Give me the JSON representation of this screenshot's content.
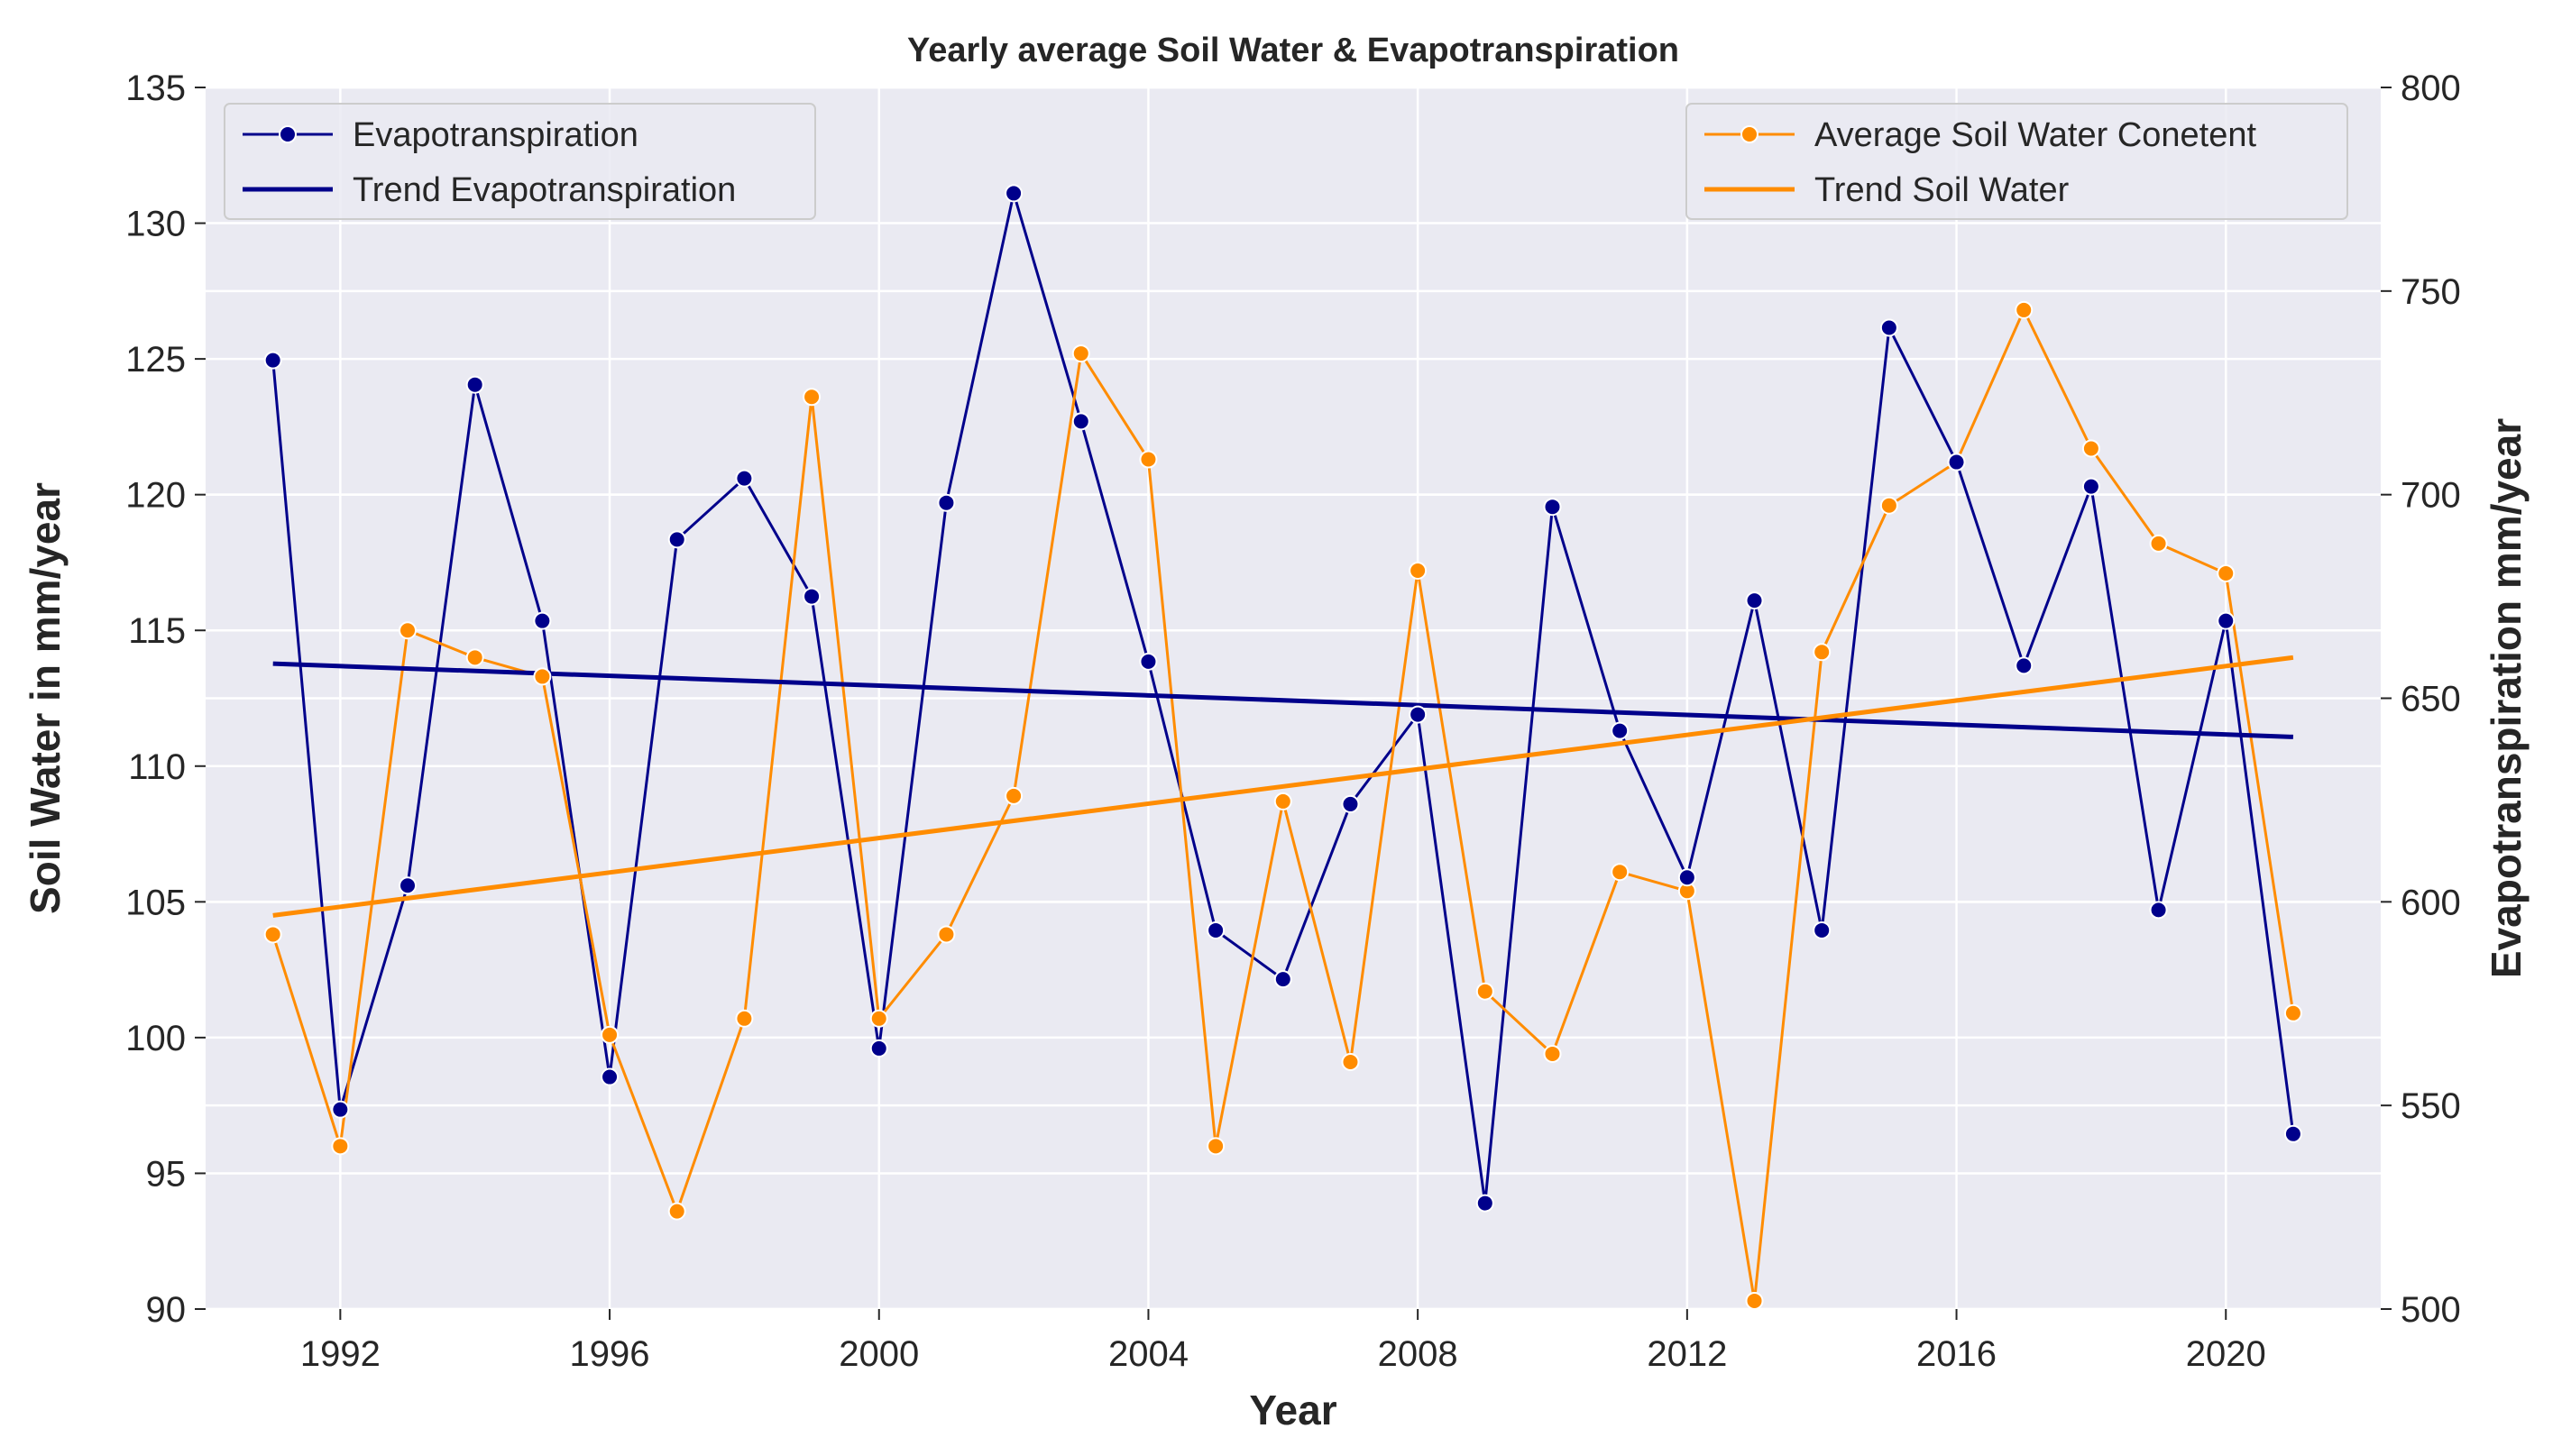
{
  "chart_data": {
    "type": "line",
    "title": "Yearly average Soil Water & Evapotranspiration",
    "xlabel": "Year",
    "ylabel_left": "Soil Water in mm/year",
    "ylabel_right": "Evapotranspiration mm/year",
    "xlim": [
      1990,
      2022.3
    ],
    "ylim_left": [
      90,
      135
    ],
    "ylim_right": [
      500,
      800
    ],
    "x_ticks": [
      1992,
      1996,
      2000,
      2004,
      2008,
      2012,
      2016,
      2020
    ],
    "y_left_ticks": [
      90,
      95,
      100,
      105,
      110,
      115,
      120,
      125,
      130,
      135
    ],
    "y_right_ticks": [
      500,
      550,
      600,
      650,
      700,
      750,
      800
    ],
    "years": [
      1991,
      1992,
      1993,
      1994,
      1995,
      1996,
      1997,
      1998,
      1999,
      2000,
      2001,
      2002,
      2003,
      2004,
      2005,
      2006,
      2007,
      2008,
      2009,
      2010,
      2011,
      2012,
      2013,
      2014,
      2015,
      2016,
      2017,
      2018,
      2019,
      2020,
      2021
    ],
    "grid": true,
    "colors": {
      "evap": "#00008b",
      "soil": "#ff8c00",
      "background": "#eaeaf2",
      "grid": "#ffffff"
    },
    "series": [
      {
        "name": "Evapotranspiration",
        "axis": "right",
        "color": "#00008b",
        "values": [
          733,
          549,
          604,
          727,
          669,
          557,
          689,
          704,
          675,
          564,
          698,
          774,
          718,
          659,
          593,
          581,
          624,
          646,
          526,
          697,
          642,
          606,
          674,
          593,
          741,
          708,
          658,
          702,
          598,
          669,
          543
        ]
      },
      {
        "name": "Average Soil Water Conetent",
        "axis": "left",
        "color": "#ff8c00",
        "values": [
          103.8,
          96.0,
          115.0,
          114.0,
          113.3,
          100.1,
          93.6,
          100.7,
          123.6,
          100.7,
          103.8,
          108.9,
          125.2,
          121.3,
          96.0,
          108.7,
          99.1,
          117.2,
          101.7,
          99.4,
          106.1,
          105.4,
          90.3,
          114.2,
          119.6,
          121.2,
          126.8,
          121.7,
          118.2,
          117.1,
          100.9
        ]
      },
      {
        "name": "Trend Evapotranspiration",
        "axis": "right",
        "color": "#00008b",
        "trend": true,
        "x": [
          1991,
          2021
        ],
        "values": [
          658.5,
          640.5
        ]
      },
      {
        "name": "Trend Soil Water",
        "axis": "left",
        "color": "#ff8c00",
        "trend": true,
        "x": [
          1991,
          2021
        ],
        "values": [
          104.5,
          114.0
        ]
      }
    ],
    "legend_left": [
      "Evapotranspiration",
      "Trend Evapotranspiration"
    ],
    "legend_right": [
      "Average Soil Water Conetent",
      "Trend Soil Water"
    ]
  }
}
